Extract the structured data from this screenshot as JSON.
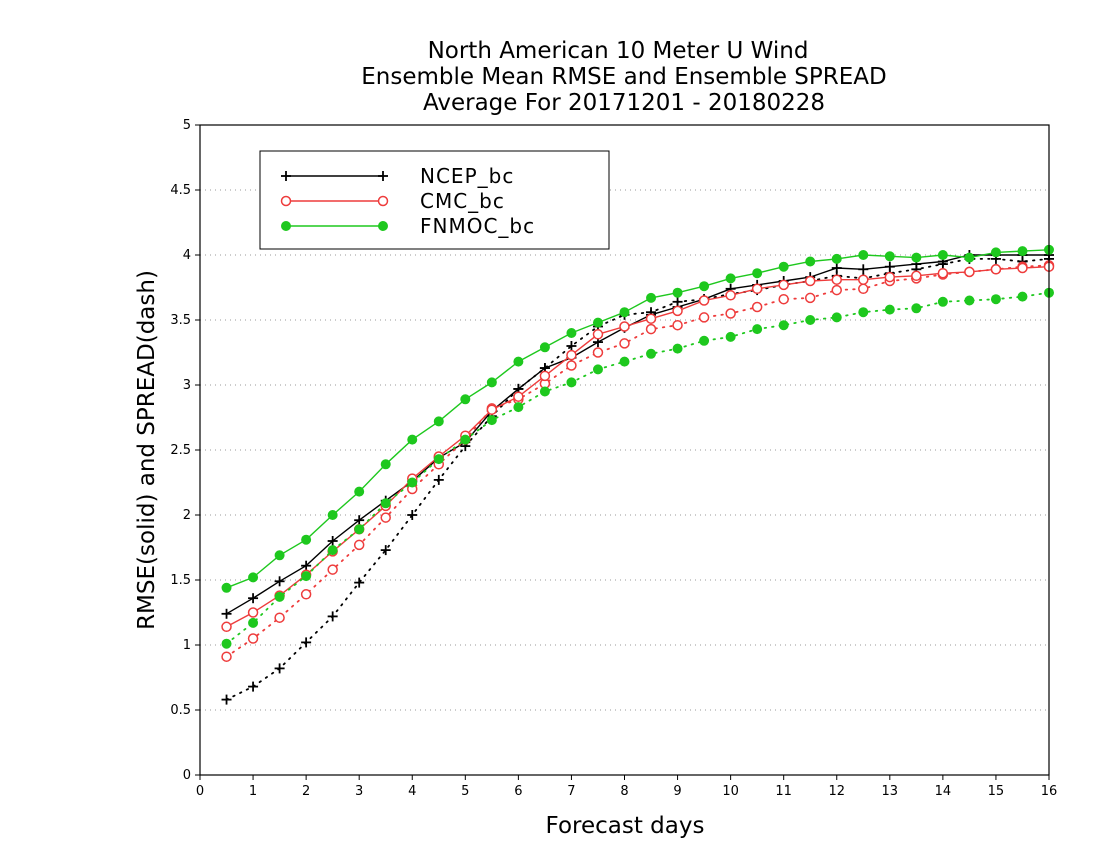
{
  "chart_data": {
    "type": "line",
    "title_lines": [
      "North American 10 Meter U Wind",
      "Ensemble Mean RMSE and Ensemble SPREAD",
      "Average For 20171201 - 20180228"
    ],
    "xlabel": "Forecast days",
    "ylabel": "RMSE(solid) and SPREAD(dash)",
    "xlim": [
      0,
      16
    ],
    "ylim": [
      0,
      5
    ],
    "xticks": [
      "0",
      "1",
      "2",
      "3",
      "4",
      "5",
      "6",
      "7",
      "8",
      "9",
      "10",
      "11",
      "12",
      "13",
      "14",
      "15",
      "16"
    ],
    "yticks": [
      "0",
      "0.5",
      "1",
      "1.5",
      "2",
      "2.5",
      "3",
      "3.5",
      "4",
      "4.5",
      "5"
    ],
    "grid": "horizontal dotted",
    "legend_position": "top-left",
    "x": [
      0.5,
      1,
      1.5,
      2,
      2.5,
      3,
      3.5,
      4,
      4.5,
      5,
      5.5,
      6,
      6.5,
      7,
      7.5,
      8,
      8.5,
      9,
      9.5,
      10,
      10.5,
      11,
      11.5,
      12,
      12.5,
      13,
      13.5,
      14,
      14.5,
      15,
      15.5,
      16
    ],
    "series": [
      {
        "name": "NCEP_bc",
        "color": "#000000",
        "marker": "plus",
        "rmse": [
          1.24,
          1.36,
          1.49,
          1.61,
          1.8,
          1.96,
          2.11,
          2.26,
          2.44,
          2.56,
          2.8,
          2.97,
          3.13,
          3.21,
          3.33,
          3.44,
          3.54,
          3.6,
          3.66,
          3.74,
          3.77,
          3.8,
          3.83,
          3.9,
          3.89,
          3.91,
          3.93,
          3.95,
          4.0,
          4.0,
          4.0,
          4.0
        ],
        "spread": [
          0.58,
          0.68,
          0.82,
          1.02,
          1.22,
          1.48,
          1.73,
          2.0,
          2.27,
          2.53,
          2.76,
          2.97,
          3.13,
          3.3,
          3.45,
          3.54,
          3.56,
          3.64,
          3.66,
          3.7,
          3.73,
          3.77,
          3.8,
          3.84,
          3.82,
          3.86,
          3.89,
          3.93,
          3.97,
          3.97,
          3.95,
          3.97
        ]
      },
      {
        "name": "CMC_bc",
        "color": "#ee3c3c",
        "marker": "open-circle",
        "rmse": [
          1.14,
          1.25,
          1.38,
          1.54,
          1.72,
          1.89,
          2.07,
          2.28,
          2.45,
          2.61,
          2.81,
          2.91,
          3.07,
          3.23,
          3.39,
          3.45,
          3.51,
          3.57,
          3.65,
          3.69,
          3.74,
          3.77,
          3.8,
          3.81,
          3.81,
          3.83,
          3.84,
          3.86,
          3.87,
          3.89,
          3.9,
          3.91
        ],
        "spread": [
          0.91,
          1.05,
          1.21,
          1.39,
          1.58,
          1.77,
          1.98,
          2.2,
          2.39,
          2.58,
          2.82,
          2.89,
          3.01,
          3.15,
          3.25,
          3.32,
          3.43,
          3.46,
          3.52,
          3.55,
          3.6,
          3.66,
          3.67,
          3.73,
          3.74,
          3.8,
          3.82,
          3.85,
          3.87,
          3.89,
          3.91,
          3.92
        ]
      },
      {
        "name": "FNMOC_bc",
        "color": "#1ec81e",
        "marker": "filled-circle",
        "rmse": [
          1.44,
          1.52,
          1.69,
          1.81,
          2.0,
          2.18,
          2.39,
          2.58,
          2.72,
          2.89,
          3.02,
          3.18,
          3.29,
          3.4,
          3.48,
          3.56,
          3.67,
          3.71,
          3.76,
          3.82,
          3.86,
          3.91,
          3.95,
          3.97,
          4.0,
          3.99,
          3.98,
          4.0,
          3.98,
          4.02,
          4.03,
          4.04
        ],
        "spread": [
          1.01,
          1.17,
          1.37,
          1.53,
          1.73,
          1.89,
          2.09,
          2.25,
          2.43,
          2.58,
          2.73,
          2.83,
          2.95,
          3.02,
          3.12,
          3.18,
          3.24,
          3.28,
          3.34,
          3.37,
          3.43,
          3.46,
          3.5,
          3.52,
          3.56,
          3.58,
          3.59,
          3.64,
          3.65,
          3.66,
          3.68,
          3.71
        ]
      }
    ]
  }
}
